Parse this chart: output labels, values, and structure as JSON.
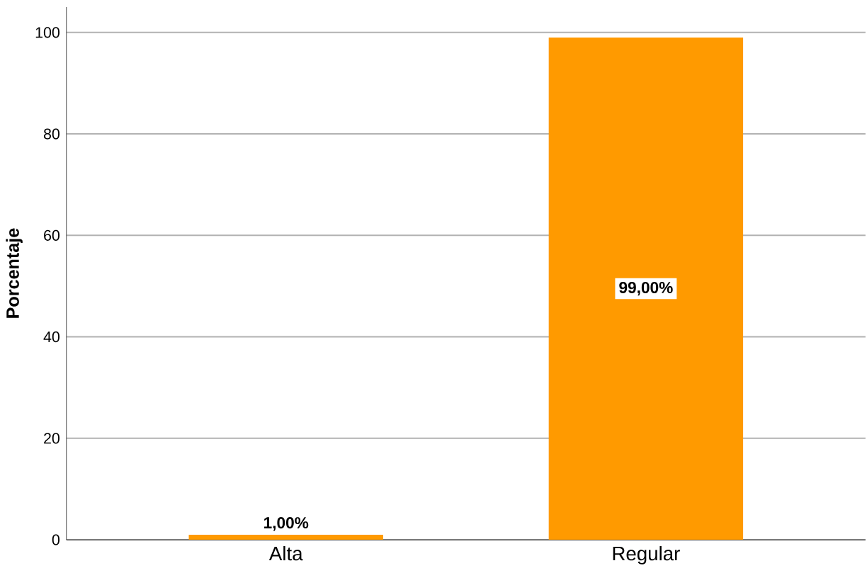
{
  "chart_data": {
    "type": "bar",
    "ylabel": "Porcentaje",
    "categories": [
      "Alta",
      "Regular"
    ],
    "values": [
      1,
      99
    ],
    "value_labels": [
      "1,00%",
      "99,00%"
    ],
    "color": "#ff9a00",
    "ylim": [
      0,
      105
    ],
    "yticks": [
      0,
      20,
      40,
      60,
      80,
      100
    ],
    "grid": "y"
  }
}
